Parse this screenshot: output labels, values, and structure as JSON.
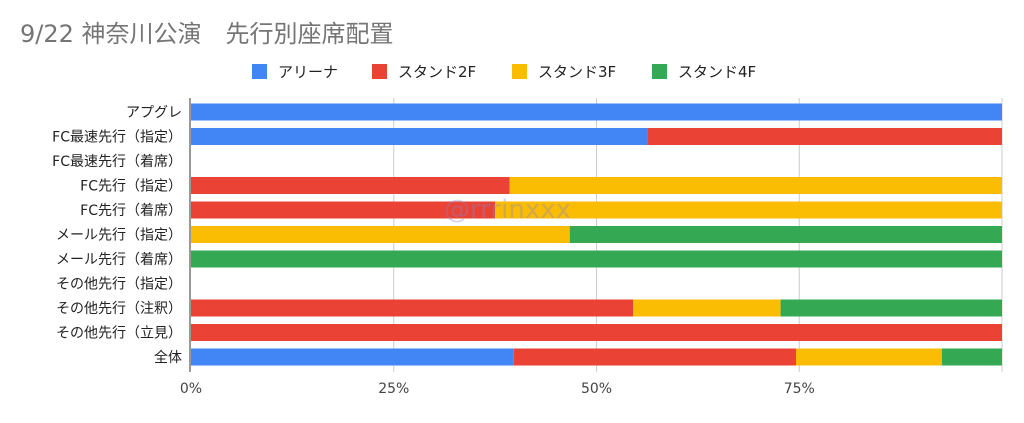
{
  "chart_data": {
    "type": "bar",
    "orientation": "horizontal",
    "stacked": "percent",
    "title": "9/22 神奈川公演　先行別座席配置",
    "watermark": "@rrrinxxx",
    "legend_position": "top",
    "categories": [
      "アプグレ",
      "FC最速先行（指定）",
      "FC最速先行（着席）",
      "FC先行（指定）",
      "FC先行（着席）",
      "メール先行（指定）",
      "メール先行（着席）",
      "その他先行（指定）",
      "その他先行（注釈）",
      "その他先行（立見）",
      "全体"
    ],
    "series": [
      {
        "name": "アリーナ",
        "color": "#4285f4",
        "values": [
          100,
          56.3,
          0,
          0,
          0,
          0,
          0,
          0,
          0,
          0,
          39.8
        ]
      },
      {
        "name": "スタンド2F",
        "color": "#ea4335",
        "values": [
          0,
          43.7,
          0,
          39.3,
          37.5,
          0,
          0,
          0,
          54.5,
          100,
          34.8
        ]
      },
      {
        "name": "スタンド3F",
        "color": "#fbbc04",
        "values": [
          0,
          0,
          0,
          60.7,
          62.5,
          46.7,
          0,
          0,
          18.2,
          0,
          18.0
        ]
      },
      {
        "name": "スタンド4F",
        "color": "#34a853",
        "values": [
          0,
          0,
          0,
          0,
          0,
          53.3,
          100,
          0,
          27.3,
          0,
          7.4
        ]
      }
    ],
    "xticks": [
      "0%",
      "25%",
      "50%",
      "75%"
    ],
    "xlim": [
      0,
      100
    ],
    "grid": true
  }
}
